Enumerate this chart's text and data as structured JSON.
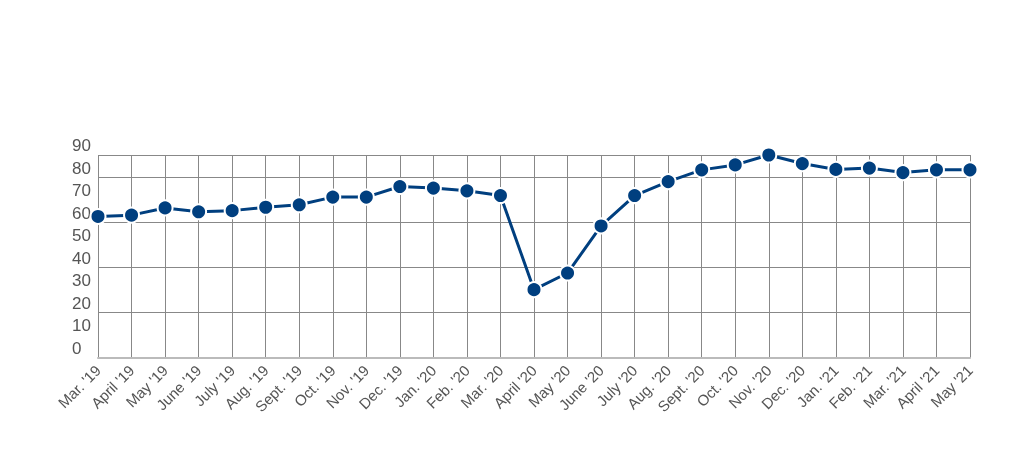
{
  "chart_data": {
    "type": "line",
    "categories": [
      "Mar. '19",
      "April '19",
      "May '19",
      "June '19",
      "July '19",
      "Aug. '19",
      "Sept. '19",
      "Oct. '19",
      "Nov. '19",
      "Dec. '19",
      "Jan. '20",
      "Feb. '20",
      "Mar. '20",
      "April '20",
      "May '20",
      "June '20",
      "July '20",
      "Aug. '20",
      "Sept. '20",
      "Oct. '20",
      "Nov. '20",
      "Dec. '20",
      "Jan. '21",
      "Feb. '21",
      "Mar. '21",
      "April '21",
      "May '21"
    ],
    "series": [
      {
        "color": "#003f7f",
        "values": [
          62.7,
          63.3,
          66.5,
          64.8,
          65.3,
          66.8,
          67.9,
          71.3,
          71.3,
          76,
          75.3,
          74.1,
          72,
          30.2,
          37.6,
          58.5,
          72,
          78.2,
          83.4,
          85.6,
          90,
          86.2,
          83.6,
          84.2,
          82.2,
          83.4,
          83.4
        ]
      }
    ],
    "ylim": [
      0,
      90
    ],
    "yticks": [
      0,
      10,
      20,
      30,
      40,
      50,
      60,
      70,
      80,
      90
    ],
    "grid": true,
    "marker": "circle",
    "line_style": "solid"
  }
}
